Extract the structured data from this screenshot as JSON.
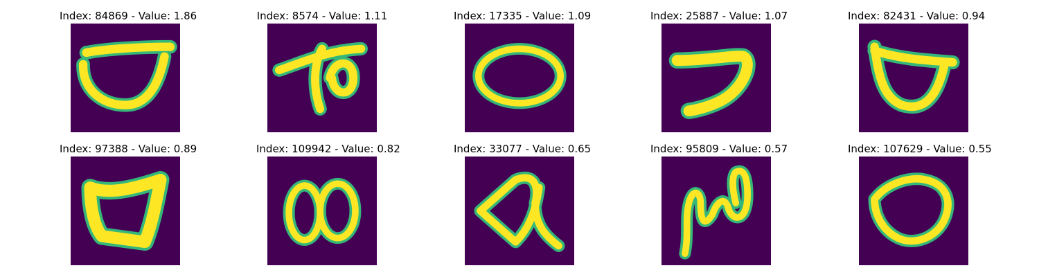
{
  "figure": {
    "panels": [
      {
        "title": "Index: 84869 - Value: 1.86",
        "glyph": "bowl-shape"
      },
      {
        "title": "Index: 8574 - Value: 1.11",
        "glyph": "looped-hook-shape"
      },
      {
        "title": "Index: 17335 - Value: 1.09",
        "glyph": "oval-shape"
      },
      {
        "title": "Index: 25887 - Value: 1.07",
        "glyph": "reverse-c-shape"
      },
      {
        "title": "Index: 82431 - Value: 0.94",
        "glyph": "cup-shape"
      },
      {
        "title": "Index: 97388 - Value: 0.89",
        "glyph": "thick-triangle-shape"
      },
      {
        "title": "Index: 109942 - Value: 0.82",
        "glyph": "double-loop-shape"
      },
      {
        "title": "Index: 33077 - Value: 0.65",
        "glyph": "angular-loop-shape"
      },
      {
        "title": "Index: 95809 - Value: 0.57",
        "glyph": "squiggle-loop-shape"
      },
      {
        "title": "Index: 107629 - Value: 0.55",
        "glyph": "round-loop-shape"
      }
    ],
    "colors": {
      "background": "#440154",
      "stroke": "#fde725",
      "edge": "#35b779"
    }
  }
}
